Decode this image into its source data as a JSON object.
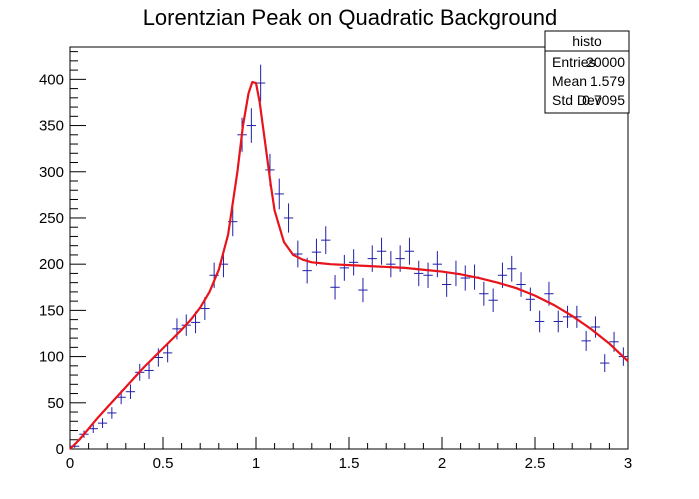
{
  "chart_data": {
    "type": "scatter",
    "title": "Lorentzian Peak on Quadratic Background",
    "xlabel": "",
    "ylabel": "",
    "xlim": [
      0,
      3
    ],
    "ylim": [
      0,
      435
    ],
    "x_ticks": [
      0,
      0.5,
      1,
      1.5,
      2,
      2.5,
      3
    ],
    "x_tick_labels": [
      "0",
      "0.5",
      "1",
      "1.5",
      "2",
      "2.5",
      "3"
    ],
    "y_ticks": [
      0,
      50,
      100,
      150,
      200,
      250,
      300,
      350,
      400
    ],
    "y_tick_labels": [
      "0",
      "50",
      "100",
      "150",
      "200",
      "250",
      "300",
      "350",
      "400"
    ],
    "grid": false,
    "bin_width": 0.05,
    "series": [
      {
        "kind": "histogram-points",
        "color": "#1f1fa8",
        "x": [
          0.025,
          0.075,
          0.125,
          0.175,
          0.225,
          0.275,
          0.325,
          0.375,
          0.425,
          0.475,
          0.525,
          0.575,
          0.625,
          0.675,
          0.725,
          0.775,
          0.825,
          0.875,
          0.925,
          0.975,
          1.025,
          1.075,
          1.125,
          1.175,
          1.225,
          1.275,
          1.325,
          1.375,
          1.425,
          1.475,
          1.525,
          1.575,
          1.625,
          1.675,
          1.725,
          1.775,
          1.825,
          1.875,
          1.925,
          1.975,
          2.025,
          2.075,
          2.125,
          2.175,
          2.225,
          2.275,
          2.325,
          2.375,
          2.425,
          2.475,
          2.525,
          2.575,
          2.625,
          2.675,
          2.725,
          2.775,
          2.825,
          2.875,
          2.925,
          2.975
        ],
        "y": [
          3,
          16,
          22,
          28,
          39,
          56,
          62,
          83,
          85,
          99,
          104,
          130,
          134,
          137,
          152,
          188,
          200,
          246,
          340,
          350,
          396,
          302,
          276,
          250,
          211,
          193,
          213,
          226,
          175,
          196,
          202,
          172,
          206,
          214,
          200,
          206,
          214,
          190,
          188,
          200,
          178,
          190,
          185,
          186,
          168,
          161,
          188,
          195,
          178,
          162,
          138,
          168,
          138,
          143,
          143,
          117,
          132,
          93,
          116,
          100
        ]
      },
      {
        "kind": "fit-line",
        "color": "#e8141b",
        "x": [
          0.0,
          0.05,
          0.1,
          0.15,
          0.2,
          0.25,
          0.3,
          0.35,
          0.4,
          0.45,
          0.5,
          0.55,
          0.6,
          0.65,
          0.7,
          0.75,
          0.8,
          0.85,
          0.9,
          0.93,
          0.96,
          0.98,
          1.0,
          1.02,
          1.05,
          1.08,
          1.1,
          1.15,
          1.2,
          1.25,
          1.3,
          1.35,
          1.4,
          1.5,
          1.6,
          1.7,
          1.8,
          1.9,
          2.0,
          2.1,
          2.2,
          2.3,
          2.4,
          2.5,
          2.6,
          2.7,
          2.8,
          2.9,
          3.0
        ],
        "y": [
          0,
          10,
          22,
          34,
          45,
          56,
          67,
          78,
          89,
          99,
          109,
          119,
          129,
          140,
          153,
          170,
          194,
          232,
          300,
          350,
          385,
          397,
          396,
          375,
          330,
          285,
          258,
          224,
          210,
          205,
          202,
          201,
          200,
          199,
          198,
          197,
          196,
          194,
          192,
          189,
          185,
          180,
          174,
          166,
          156,
          144,
          130,
          114,
          95
        ]
      }
    ],
    "stats_box": {
      "title": "histo",
      "rows": [
        {
          "label": "Entries",
          "value": "20000"
        },
        {
          "label": "Mean",
          "value": "1.579"
        },
        {
          "label": "Std Dev",
          "value": "0.7095"
        }
      ]
    }
  }
}
